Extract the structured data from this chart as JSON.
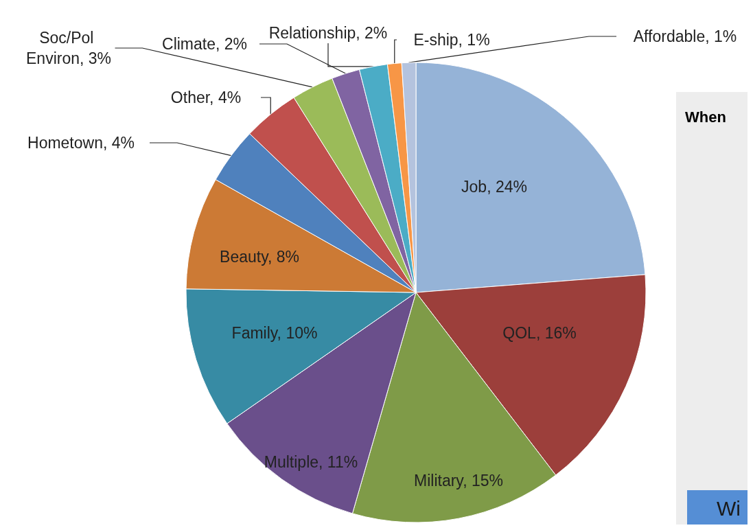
{
  "chart_data": {
    "type": "pie",
    "categories": [
      "Job",
      "QOL",
      "Military",
      "Multiple",
      "Family",
      "Beauty",
      "Hometown",
      "Other",
      "Soc/Pol Environ",
      "Climate",
      "Relationship",
      "E-ship",
      "Affordable"
    ],
    "values": [
      24,
      16,
      15,
      11,
      10,
      8,
      4,
      4,
      3,
      2,
      2,
      1,
      1
    ],
    "value_labels": [
      "24%",
      "16%",
      "15%",
      "11%",
      "10%",
      "8%",
      "4%",
      "4%",
      "3%",
      "2%",
      "2%",
      "1%",
      "1%"
    ],
    "colors": [
      "#95b3d7",
      "#9c3f3b",
      "#7f9b48",
      "#6a4f8b",
      "#378ba4",
      "#cc7a35",
      "#4f81bd",
      "#c0504d",
      "#9bbb59",
      "#8064a2",
      "#4bacc6",
      "#f79646",
      "#b4c3de"
    ],
    "legend": false,
    "annotations": [
      "When",
      "Wi"
    ]
  }
}
